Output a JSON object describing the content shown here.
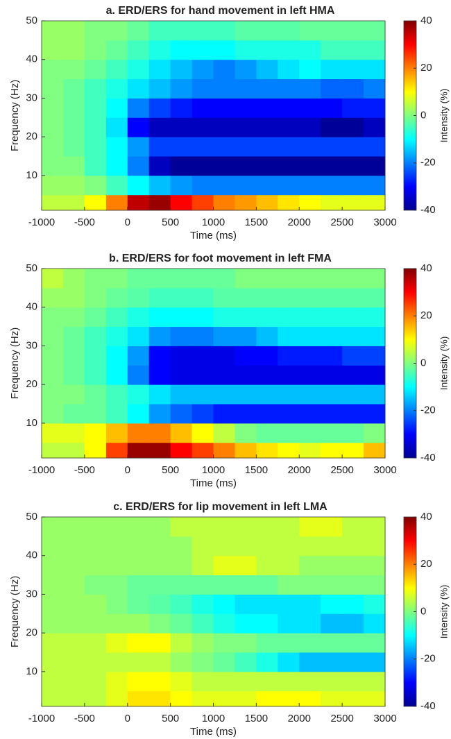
{
  "chart_data": [
    {
      "type": "heatmap",
      "title": "a. ERD/ERS for hand movement in left HMA",
      "xlabel": "Time (ms)",
      "ylabel": "Frequency (Hz)",
      "colorbar_label": "Intensity (%)",
      "colormap": "jet",
      "xlim": [
        -1000,
        3000
      ],
      "xticks": [
        -1000,
        -500,
        0,
        500,
        1000,
        1500,
        2000,
        2500,
        3000
      ],
      "ylim": [
        1,
        50
      ],
      "yticks": [
        10,
        20,
        30,
        40,
        50
      ],
      "clim": [
        -40,
        40
      ],
      "cticks": [
        -40,
        -20,
        0,
        20,
        40
      ],
      "xbins": [
        -1000,
        -750,
        -500,
        -250,
        0,
        250,
        500,
        750,
        1000,
        1250,
        1500,
        1750,
        2000,
        2250,
        2500,
        2750,
        3000
      ],
      "ybins": [
        1,
        5,
        10,
        15,
        20,
        25,
        30,
        35,
        40,
        45,
        50
      ],
      "values": [
        [
          5,
          5,
          10,
          20,
          35,
          38,
          30,
          25,
          20,
          18,
          15,
          12,
          10,
          8,
          8,
          8
        ],
        [
          2,
          2,
          0,
          -5,
          -10,
          -15,
          -18,
          -20,
          -20,
          -20,
          -20,
          -20,
          -20,
          -20,
          -20,
          -20
        ],
        [
          0,
          0,
          -5,
          -10,
          -20,
          -35,
          -38,
          -38,
          -38,
          -38,
          -38,
          -38,
          -38,
          -38,
          -38,
          -38
        ],
        [
          0,
          -2,
          -5,
          -10,
          -18,
          -25,
          -25,
          -25,
          -25,
          -25,
          -25,
          -25,
          -25,
          -25,
          -25,
          -25
        ],
        [
          0,
          -2,
          -5,
          -12,
          -30,
          -35,
          -35,
          -35,
          -35,
          -35,
          -35,
          -35,
          -35,
          -38,
          -38,
          -35
        ],
        [
          0,
          -2,
          -5,
          -10,
          -20,
          -25,
          -28,
          -30,
          -30,
          -30,
          -30,
          -30,
          -30,
          -30,
          -28,
          -28
        ],
        [
          0,
          -2,
          -5,
          -8,
          -12,
          -15,
          -18,
          -20,
          -20,
          -20,
          -20,
          -20,
          -20,
          -22,
          -22,
          -20
        ],
        [
          0,
          0,
          -2,
          -5,
          -8,
          -12,
          -15,
          -18,
          -20,
          -18,
          -15,
          -12,
          -10,
          -12,
          -12,
          -12
        ],
        [
          2,
          2,
          0,
          -2,
          -5,
          -8,
          -10,
          -10,
          -10,
          -8,
          -8,
          -8,
          -8,
          -5,
          -5,
          -5
        ],
        [
          2,
          2,
          0,
          0,
          -2,
          -5,
          -5,
          -5,
          -5,
          -3,
          -3,
          -3,
          -2,
          -2,
          -2,
          -2
        ]
      ]
    },
    {
      "type": "heatmap",
      "title": "b. ERD/ERS for foot movement in left FMA",
      "xlabel": "Time (ms)",
      "ylabel": "Frequency (Hz)",
      "colorbar_label": "Intensity (%)",
      "colormap": "jet",
      "xlim": [
        -1000,
        3000
      ],
      "xticks": [
        -1000,
        -500,
        0,
        500,
        1000,
        1500,
        2000,
        2500,
        3000
      ],
      "ylim": [
        1,
        50
      ],
      "yticks": [
        10,
        20,
        30,
        40,
        50
      ],
      "clim": [
        -40,
        40
      ],
      "cticks": [
        -40,
        -20,
        0,
        20,
        40
      ],
      "xbins": [
        -1000,
        -750,
        -500,
        -250,
        0,
        250,
        500,
        750,
        1000,
        1250,
        1500,
        1750,
        2000,
        2250,
        2500,
        2750,
        3000
      ],
      "ybins": [
        1,
        5,
        10,
        15,
        20,
        25,
        30,
        35,
        40,
        45,
        50
      ],
      "values": [
        [
          5,
          5,
          10,
          25,
          38,
          38,
          30,
          25,
          20,
          15,
          12,
          10,
          8,
          10,
          10,
          15
        ],
        [
          8,
          8,
          10,
          15,
          20,
          20,
          15,
          10,
          5,
          0,
          -2,
          -2,
          -2,
          -2,
          -2,
          0
        ],
        [
          0,
          -2,
          -2,
          -5,
          -10,
          -18,
          -22,
          -25,
          -28,
          -28,
          -28,
          -28,
          -28,
          -28,
          -28,
          -28
        ],
        [
          0,
          0,
          -2,
          -5,
          -8,
          -12,
          -15,
          -15,
          -15,
          -15,
          -15,
          -15,
          -15,
          -15,
          -15,
          -15
        ],
        [
          0,
          -2,
          -5,
          -10,
          -20,
          -30,
          -32,
          -32,
          -32,
          -32,
          -32,
          -32,
          -32,
          -32,
          -32,
          -32
        ],
        [
          0,
          -2,
          -5,
          -10,
          -18,
          -30,
          -32,
          -32,
          -32,
          -30,
          -30,
          -28,
          -28,
          -28,
          -25,
          -25
        ],
        [
          0,
          -2,
          -5,
          -8,
          -12,
          -18,
          -20,
          -20,
          -18,
          -18,
          -15,
          -12,
          -12,
          -12,
          -12,
          -12
        ],
        [
          0,
          0,
          -2,
          -5,
          -8,
          -10,
          -10,
          -10,
          -8,
          -8,
          -8,
          -8,
          -8,
          -8,
          -8,
          -8
        ],
        [
          2,
          2,
          0,
          -2,
          -3,
          -5,
          -5,
          -5,
          -3,
          -3,
          -3,
          -3,
          -3,
          -3,
          -3,
          -3
        ],
        [
          5,
          2,
          0,
          0,
          -2,
          -2,
          -2,
          -2,
          -2,
          0,
          0,
          0,
          0,
          0,
          0,
          0
        ]
      ]
    },
    {
      "type": "heatmap",
      "title": "c. ERD/ERS for lip movement in left LMA",
      "xlabel": "Time (ms)",
      "ylabel": "Frequency (Hz)",
      "colorbar_label": "Intensity (%)",
      "colormap": "jet",
      "xlim": [
        -1000,
        3000
      ],
      "xticks": [
        -1000,
        -500,
        0,
        500,
        1000,
        1500,
        2000,
        2500,
        3000
      ],
      "ylim": [
        1,
        50
      ],
      "yticks": [
        10,
        20,
        30,
        40,
        50
      ],
      "clim": [
        -40,
        40
      ],
      "cticks": [
        -40,
        -20,
        0,
        20,
        40
      ],
      "xbins": [
        -1000,
        -750,
        -500,
        -250,
        0,
        250,
        500,
        750,
        1000,
        1250,
        1500,
        1750,
        2000,
        2250,
        2500,
        2750,
        3000
      ],
      "ybins": [
        1,
        5,
        10,
        15,
        20,
        25,
        30,
        35,
        40,
        45,
        50
      ],
      "values": [
        [
          5,
          5,
          5,
          8,
          12,
          12,
          10,
          8,
          8,
          8,
          10,
          10,
          10,
          8,
          8,
          8
        ],
        [
          5,
          5,
          5,
          8,
          10,
          10,
          8,
          5,
          5,
          5,
          5,
          5,
          5,
          5,
          5,
          5
        ],
        [
          5,
          5,
          5,
          5,
          5,
          5,
          2,
          0,
          -2,
          -5,
          -8,
          -12,
          -15,
          -15,
          -15,
          -15
        ],
        [
          5,
          5,
          5,
          8,
          10,
          10,
          5,
          2,
          0,
          0,
          -2,
          -2,
          -2,
          -2,
          -2,
          -2
        ],
        [
          2,
          2,
          2,
          2,
          2,
          0,
          -2,
          -5,
          -8,
          -10,
          -10,
          -12,
          -12,
          -15,
          -15,
          -12
        ],
        [
          2,
          2,
          2,
          0,
          -2,
          -3,
          -5,
          -8,
          -10,
          -12,
          -12,
          -12,
          -12,
          -10,
          -10,
          -8
        ],
        [
          2,
          2,
          0,
          0,
          -2,
          -2,
          -2,
          -2,
          -2,
          -2,
          -2,
          0,
          0,
          0,
          0,
          0
        ],
        [
          2,
          2,
          2,
          2,
          2,
          2,
          2,
          5,
          8,
          8,
          5,
          5,
          2,
          2,
          2,
          2
        ],
        [
          2,
          2,
          2,
          2,
          2,
          2,
          2,
          5,
          5,
          5,
          5,
          5,
          5,
          5,
          5,
          5
        ],
        [
          2,
          2,
          2,
          2,
          2,
          2,
          5,
          5,
          5,
          5,
          5,
          5,
          8,
          8,
          5,
          5
        ]
      ]
    }
  ]
}
